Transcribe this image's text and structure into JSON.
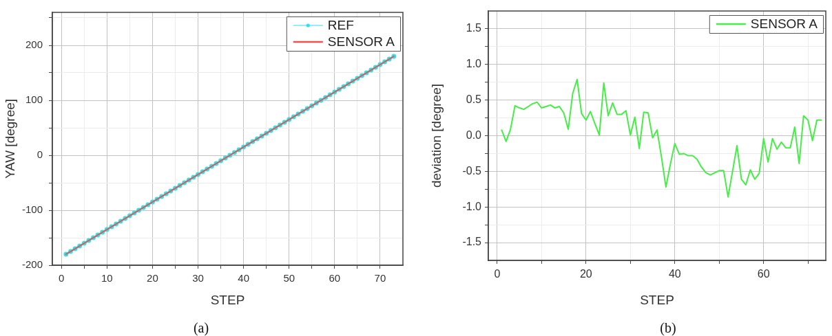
{
  "chart_data": [
    {
      "type": "line",
      "xlabel": "STEP",
      "ylabel": "YAW [degree]",
      "x": [
        1,
        2,
        3,
        4,
        5,
        6,
        7,
        8,
        9,
        10,
        11,
        12,
        13,
        14,
        15,
        16,
        17,
        18,
        19,
        20,
        21,
        22,
        23,
        24,
        25,
        26,
        27,
        28,
        29,
        30,
        31,
        32,
        33,
        34,
        35,
        36,
        37,
        38,
        39,
        40,
        41,
        42,
        43,
        44,
        45,
        46,
        47,
        48,
        49,
        50,
        51,
        52,
        53,
        54,
        55,
        56,
        57,
        58,
        59,
        60,
        61,
        62,
        63,
        64,
        65,
        66,
        67,
        68,
        69,
        70,
        71,
        72,
        73
      ],
      "series": [
        {
          "name": "REF",
          "color": "#30e0e8",
          "marker": "circle",
          "values": [
            -180,
            -175,
            -170,
            -165,
            -160,
            -155,
            -150,
            -145,
            -140,
            -135,
            -130,
            -125,
            -120,
            -115,
            -110,
            -105,
            -100,
            -95,
            -90,
            -85,
            -80,
            -75,
            -70,
            -65,
            -60,
            -55,
            -50,
            -45,
            -40,
            -35,
            -30,
            -25,
            -20,
            -15,
            -10,
            -5,
            0,
            5,
            10,
            15,
            20,
            25,
            30,
            35,
            40,
            45,
            50,
            55,
            60,
            65,
            70,
            75,
            80,
            85,
            90,
            95,
            100,
            105,
            110,
            115,
            120,
            125,
            130,
            135,
            140,
            145,
            150,
            155,
            160,
            165,
            170,
            175,
            180
          ]
        },
        {
          "name": "SENSOR A",
          "color": "#f04f4f",
          "marker": "none",
          "values": [
            -180,
            -175,
            -170,
            -165,
            -160,
            -155,
            -150,
            -145,
            -140,
            -135,
            -130,
            -125,
            -120,
            -115,
            -110,
            -105,
            -100,
            -95,
            -90,
            -85,
            -80,
            -75,
            -70,
            -65,
            -60,
            -55,
            -50,
            -45,
            -40,
            -35,
            -30,
            -25,
            -20,
            -15,
            -10,
            -5,
            0,
            5,
            10,
            15,
            20,
            25,
            30,
            35,
            40,
            45,
            50,
            55,
            60,
            65,
            70,
            75,
            80,
            85,
            90,
            95,
            100,
            105,
            110,
            115,
            120,
            125,
            130,
            135,
            140,
            145,
            150,
            155,
            160,
            165,
            170,
            175,
            180
          ]
        }
      ],
      "xlim": [
        -2,
        75
      ],
      "xticks": [
        0,
        {
          "value": 5,
          "label": null
        },
        10,
        {
          "value": 15,
          "label": null
        },
        20,
        {
          "value": 25,
          "label": null
        },
        30,
        {
          "value": 35,
          "label": null
        },
        40,
        {
          "value": 45,
          "label": null
        },
        50,
        {
          "value": 55,
          "label": null
        },
        60,
        {
          "value": 65,
          "label": null
        },
        70
      ],
      "ylim": [
        -200,
        260
      ],
      "yticks": [
        -200,
        {
          "value": -150,
          "label": null
        },
        -100,
        {
          "value": -50,
          "label": null
        },
        0,
        {
          "value": 50,
          "label": null
        },
        100,
        {
          "value": 150,
          "label": null
        },
        200,
        {
          "value": 250,
          "label": null
        }
      ],
      "grid": true,
      "legend": "top right",
      "annotations": [
        "(a)"
      ]
    },
    {
      "type": "line",
      "xlabel": "STEP",
      "ylabel": "deviation [degree]",
      "x": [
        1,
        2,
        3,
        4,
        5,
        6,
        7,
        8,
        9,
        10,
        11,
        12,
        13,
        14,
        15,
        16,
        17,
        18,
        19,
        20,
        21,
        22,
        23,
        24,
        25,
        26,
        27,
        28,
        29,
        30,
        31,
        32,
        33,
        34,
        35,
        36,
        37,
        38,
        39,
        40,
        41,
        42,
        43,
        44,
        45,
        46,
        47,
        48,
        49,
        50,
        51,
        52,
        53,
        54,
        55,
        56,
        57,
        58,
        59,
        60,
        61,
        62,
        63,
        64,
        65,
        66,
        67,
        68,
        69,
        70,
        71,
        72,
        73
      ],
      "series": [
        {
          "name": "SENSOR A",
          "color": "#44ee44",
          "values": [
            0.08,
            -0.08,
            0.09,
            0.42,
            0.39,
            0.37,
            0.41,
            0.45,
            0.47,
            0.39,
            0.41,
            0.43,
            0.39,
            0.41,
            0.32,
            0.09,
            0.59,
            0.79,
            0.31,
            0.22,
            0.34,
            0.17,
            0.01,
            0.74,
            0.28,
            0.46,
            0.3,
            0.3,
            0.35,
            0.01,
            0.26,
            -0.18,
            0.33,
            0.32,
            -0.03,
            0.08,
            -0.3,
            -0.72,
            -0.4,
            -0.11,
            -0.26,
            -0.25,
            -0.28,
            -0.28,
            -0.33,
            -0.44,
            -0.52,
            -0.55,
            -0.52,
            -0.49,
            -0.49,
            -0.86,
            -0.5,
            -0.14,
            -0.61,
            -0.69,
            -0.48,
            -0.61,
            -0.53,
            -0.04,
            -0.37,
            -0.04,
            -0.19,
            -0.09,
            -0.17,
            -0.17,
            0.12,
            -0.39,
            0.28,
            0.22,
            -0.07,
            0.22,
            0.22
          ]
        }
      ],
      "xlim": [
        -2,
        74
      ],
      "xticks": [
        0,
        {
          "value": 10,
          "label": null
        },
        20,
        {
          "value": 30,
          "label": null
        },
        40,
        {
          "value": 50,
          "label": null
        },
        60,
        {
          "value": 70,
          "label": null
        }
      ],
      "ylim": [
        -1.75,
        1.75
      ],
      "yticks": [
        -1.5,
        {
          "value": -1.25,
          "label": null
        },
        {
          "value": -1,
          "label": "-1.0"
        },
        {
          "value": -0.75,
          "label": null
        },
        -0.5,
        {
          "value": -0.25,
          "label": null
        },
        {
          "value": 0,
          "label": "0.0"
        },
        {
          "value": 0.25,
          "label": null
        },
        0.5,
        {
          "value": 0.75,
          "label": null
        },
        {
          "value": 1,
          "label": "1.0"
        },
        {
          "value": 1.25,
          "label": null
        },
        1.5
      ],
      "grid": true,
      "legend": "top right",
      "annotations": [
        "(b)"
      ]
    }
  ]
}
